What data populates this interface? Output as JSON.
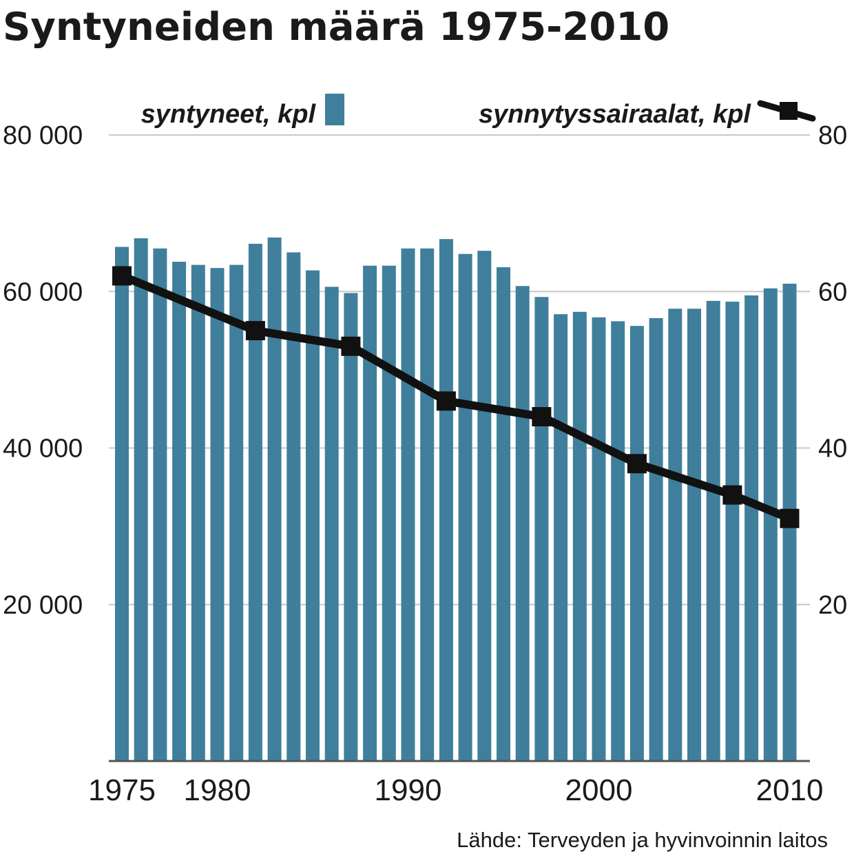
{
  "chart_data": {
    "type": "bar",
    "title": "Syntyneiden määrä 1975-2010",
    "source": "Lähde: Terveyden ja hyvinvoinnin laitos",
    "x": [
      1975,
      1976,
      1977,
      1978,
      1979,
      1980,
      1981,
      1982,
      1983,
      1984,
      1985,
      1986,
      1987,
      1988,
      1989,
      1990,
      1991,
      1992,
      1993,
      1994,
      1995,
      1996,
      1997,
      1998,
      1999,
      2000,
      2001,
      2002,
      2003,
      2004,
      2005,
      2006,
      2007,
      2008,
      2009,
      2010
    ],
    "x_tick_labels": [
      "1975",
      "1980",
      "1990",
      "2000",
      "2010"
    ],
    "x_tick_years": [
      1975,
      1980,
      1990,
      2000,
      2010
    ],
    "ylim": [
      0,
      80000
    ],
    "y_ticks": [
      20000,
      40000,
      60000,
      80000
    ],
    "y_tick_labels_left": [
      "20 000",
      "40 000",
      "60 000",
      "80 000"
    ],
    "y_tick_labels_right": [
      "20",
      "40",
      "60",
      "80"
    ],
    "grid": true,
    "legend_position": "top",
    "colors": {
      "bars": "#3f7f9c",
      "line": "#111111",
      "grid": "#c8c8c8",
      "axis": "#555555"
    },
    "series": [
      {
        "name": "syntyneet, kpl",
        "type": "bar",
        "axis": "left",
        "values": [
          65700,
          66800,
          65500,
          63800,
          63400,
          63000,
          63400,
          66100,
          66900,
          65000,
          62700,
          60600,
          59800,
          63300,
          63300,
          65500,
          65500,
          66700,
          64800,
          65200,
          63100,
          60700,
          59300,
          57100,
          57400,
          56700,
          56200,
          55600,
          56600,
          57800,
          57800,
          58800,
          58700,
          59500,
          60400,
          61000
        ]
      },
      {
        "name": "synnytyssairaalat, kpl",
        "type": "line",
        "axis": "right",
        "x": [
          1975,
          1982,
          1987,
          1992,
          1997,
          2002,
          2007,
          2010
        ],
        "values": [
          62,
          55,
          53,
          46,
          44,
          38,
          34,
          31
        ]
      }
    ]
  }
}
